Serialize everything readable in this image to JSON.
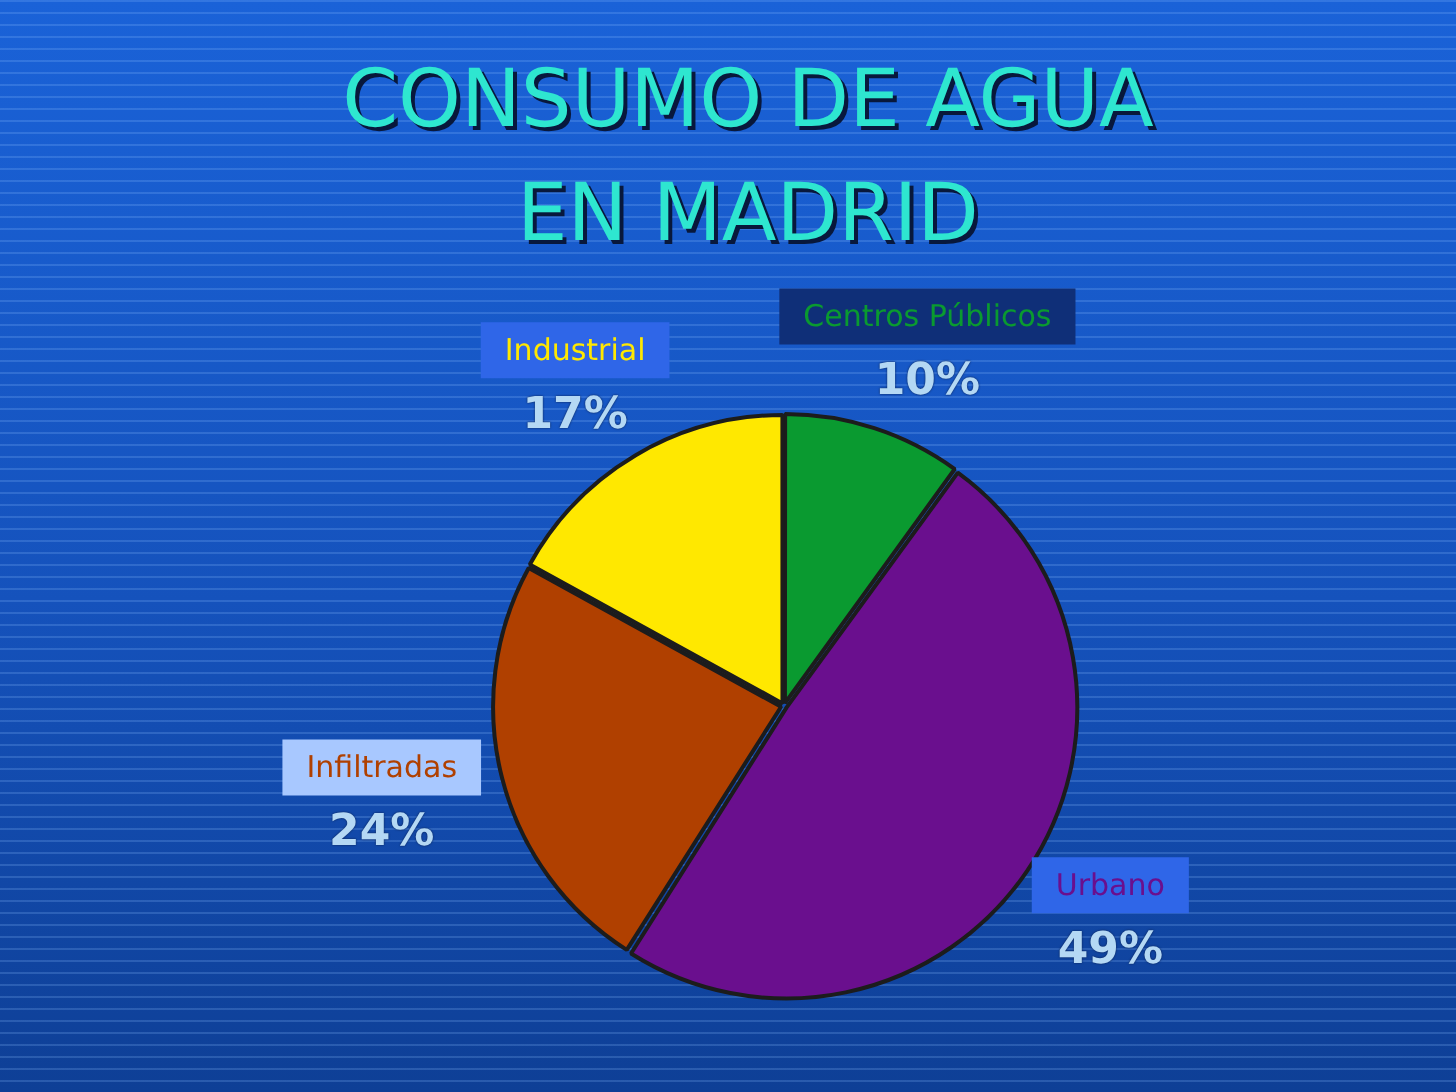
{
  "chart_data": {
    "type": "pie",
    "title": "CONSUMO DE AGUA EN MADRID",
    "categories": [
      "Centros Públicos",
      "Urbano",
      "Infiltradas",
      "Industrial"
    ],
    "values": [
      10,
      49,
      24,
      17
    ],
    "colors": [
      "#0a9a30",
      "#6a0f8e",
      "#b04000",
      "#ffe800"
    ],
    "value_labels": [
      "10%",
      "49%",
      "24%",
      "17%"
    ]
  }
}
